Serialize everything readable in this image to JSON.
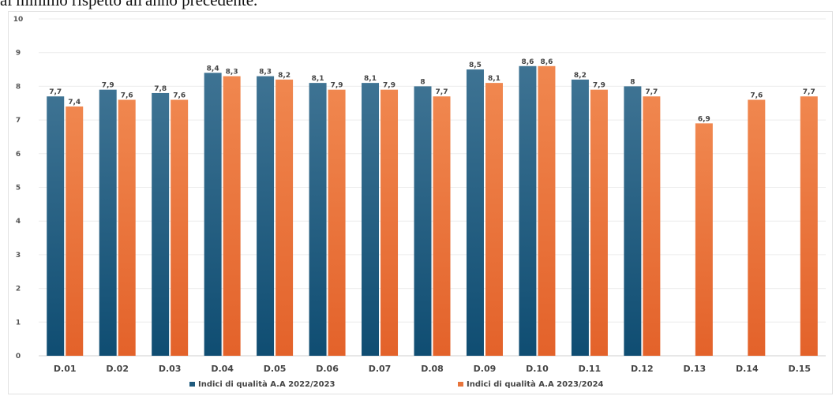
{
  "header": {
    "text": "al minimo rispetto all'anno precedente."
  },
  "chart_data": {
    "type": "bar",
    "title": "",
    "xlabel": "",
    "ylabel": "",
    "ylim": [
      0,
      10
    ],
    "yticks": [
      0,
      1,
      2,
      3,
      4,
      5,
      6,
      7,
      8,
      9,
      10
    ],
    "grid": true,
    "legend": "bottom",
    "categories": [
      "D.01",
      "D.02",
      "D.03",
      "D.04",
      "D.05",
      "D.06",
      "D.07",
      "D.08",
      "D.09",
      "D.10",
      "D.11",
      "D.12",
      "D.13",
      "D.14",
      "D.15"
    ],
    "series": [
      {
        "name": "Indici di qualità A.A 2022/2023",
        "color": "#1f5a7d",
        "values": [
          7.7,
          7.9,
          7.8,
          8.4,
          8.3,
          8.1,
          8.1,
          8,
          8.5,
          8.6,
          8.2,
          8,
          null,
          null,
          null
        ],
        "labels": [
          "7,7",
          "7,9",
          "7,8",
          "8,4",
          "8,3",
          "8,1",
          "8,1",
          "8",
          "8,5",
          "8,6",
          "8,2",
          "8",
          "",
          "",
          ""
        ]
      },
      {
        "name": "Indici di qualità A.A 2023/2024",
        "color": "#e8743b",
        "values": [
          7.4,
          7.6,
          7.6,
          8.3,
          8.2,
          7.9,
          7.9,
          7.7,
          8.1,
          8.6,
          7.9,
          7.7,
          6.9,
          7.6,
          7.7
        ],
        "labels": [
          "7,4",
          "7,6",
          "7,6",
          "8,3",
          "8,2",
          "7,9",
          "7,9",
          "7,7",
          "8,1",
          "8,6",
          "7,9",
          "7,7",
          "6,9",
          "7,6",
          "7,7"
        ]
      }
    ]
  }
}
